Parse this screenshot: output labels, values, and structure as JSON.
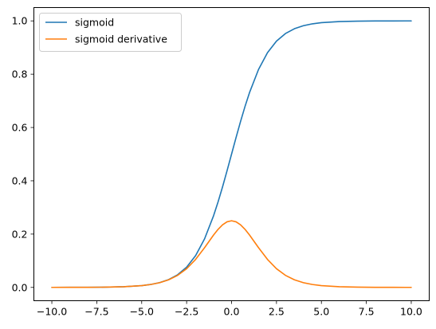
{
  "chart_data": {
    "type": "line",
    "title": "",
    "xlabel": "",
    "ylabel": "",
    "xlim": [
      -11,
      11
    ],
    "ylim": [
      -0.05,
      1.05
    ],
    "xticks": [
      -10.0,
      -7.5,
      -5.0,
      -2.5,
      0.0,
      2.5,
      5.0,
      7.5,
      10.0
    ],
    "xtick_labels": [
      "−10.0",
      "−7.5",
      "−5.0",
      "−2.5",
      "0.0",
      "2.5",
      "5.0",
      "7.5",
      "10.0"
    ],
    "yticks": [
      0.0,
      0.2,
      0.4,
      0.6,
      0.8,
      1.0
    ],
    "ytick_labels": [
      "0.0",
      "0.2",
      "0.4",
      "0.6",
      "0.8",
      "1.0"
    ],
    "grid": false,
    "legend": "upper-left",
    "x": [
      -10,
      -9,
      -8,
      -7,
      -6,
      -5,
      -4.5,
      -4,
      -3.5,
      -3,
      -2.5,
      -2,
      -1.5,
      -1,
      -0.75,
      -0.5,
      -0.25,
      0,
      0.25,
      0.5,
      0.75,
      1,
      1.5,
      2,
      2.5,
      3,
      3.5,
      4,
      4.5,
      5,
      6,
      7,
      8,
      9,
      10
    ],
    "series": [
      {
        "name": "sigmoid",
        "color": "#1f77b4",
        "values": [
          4.54e-05,
          0.0001234,
          0.0003354,
          0.0009111,
          0.0024726,
          0.0066929,
          0.0109869,
          0.0179862,
          0.0293122,
          0.0474259,
          0.0758582,
          0.1192029,
          0.1824255,
          0.2689414,
          0.3208213,
          0.3775407,
          0.4378235,
          0.5,
          0.5621765,
          0.6224593,
          0.6791787,
          0.7310586,
          0.8175745,
          0.8807971,
          0.9241418,
          0.9525741,
          0.9706878,
          0.9820138,
          0.9890131,
          0.9933071,
          0.9975274,
          0.9990889,
          0.9996646,
          0.9998766,
          0.9999546
        ]
      },
      {
        "name": "sigmoid derivative",
        "color": "#ff7f0e",
        "values": [
          4.54e-05,
          0.0001234,
          0.0003353,
          0.0009102,
          0.0024665,
          0.0066481,
          0.0108662,
          0.0176627,
          0.028453,
          0.0451767,
          0.0701037,
          0.1049936,
          0.1491465,
          0.1966119,
          0.2178949,
          0.2350037,
          0.246134,
          0.25,
          0.246134,
          0.2350037,
          0.2178949,
          0.1966119,
          0.1491465,
          0.1049936,
          0.0701037,
          0.0451767,
          0.028453,
          0.0176627,
          0.0108662,
          0.0066481,
          0.0024665,
          0.0009102,
          0.0003353,
          0.0001234,
          4.54e-05
        ]
      }
    ]
  }
}
